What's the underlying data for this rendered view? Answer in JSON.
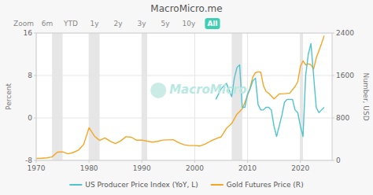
{
  "chart_data": {
    "type": "line",
    "title": "MacroMicro.me",
    "zoom_labels": [
      "Zoom",
      "6m",
      "YTD",
      "1y",
      "2y",
      "3y",
      "5y",
      "10y",
      "All"
    ],
    "active_zoom": "All",
    "watermark": "MacroMicro",
    "ylabel": "Percent",
    "y2label": "Number, USD",
    "xlim": [
      1970,
      2026
    ],
    "xticks": [
      1970,
      1980,
      1990,
      2000,
      2010,
      2020
    ],
    "ylim": [
      -8,
      16
    ],
    "yticks": [
      -8,
      0,
      8,
      16
    ],
    "y2lim": [
      0,
      2400
    ],
    "y2ticks": [
      0,
      800,
      1600,
      2400
    ],
    "grid": true,
    "legend": "bottom",
    "shaded_regions": [
      [
        1973,
        1975
      ],
      [
        1980,
        1982
      ],
      [
        1990,
        1991
      ],
      [
        2007,
        2009
      ],
      [
        2020,
        2020.5
      ]
    ],
    "series": [
      {
        "name": "US Producer Price Index (YoY, L)",
        "color": "#4fc3d0",
        "x": [
          2004,
          2005,
          2006,
          2007,
          2007.5,
          2008,
          2008.5,
          2009,
          2009.5,
          2010,
          2010.5,
          2011,
          2011.5,
          2012,
          2012.5,
          2013,
          2013.5,
          2014,
          2014.5,
          2015,
          2015.5,
          2016,
          2016.5,
          2017,
          2017.5,
          2018,
          2018.5,
          2019,
          2019.5,
          2020,
          2020.5,
          2021,
          2021.5,
          2022,
          2022.5,
          2023,
          2023.5,
          2024,
          2024.5
        ],
        "values": [
          3.5,
          5.5,
          6.5,
          4.0,
          7.5,
          9.5,
          10.0,
          2.0,
          2.0,
          4.5,
          5.5,
          7.0,
          7.5,
          2.5,
          1.5,
          1.5,
          2.0,
          2.0,
          1.5,
          -1.5,
          -3.5,
          -1.5,
          0.5,
          3.0,
          3.5,
          3.5,
          3.5,
          1.5,
          1.0,
          -1.5,
          -3.5,
          8.0,
          12.0,
          14.0,
          8.0,
          2.0,
          1.0,
          1.5,
          2.0
        ]
      },
      {
        "name": "Gold Futures Price (R)",
        "color": "#f5a623",
        "axis": "y2",
        "x": [
          1970,
          1971,
          1972,
          1973,
          1974,
          1975,
          1976,
          1977,
          1978,
          1979,
          1980,
          1981,
          1982,
          1983,
          1984,
          1985,
          1986,
          1987,
          1988,
          1989,
          1990,
          1991,
          1992,
          1993,
          1994,
          1995,
          1996,
          1997,
          1998,
          1999,
          2000,
          2001,
          2002,
          2003,
          2004,
          2005,
          2006,
          2007,
          2008,
          2009,
          2009.5,
          2010,
          2010.5,
          2011,
          2011.5,
          2012,
          2012.5,
          2013,
          2013.5,
          2014,
          2015,
          2016,
          2017,
          2018,
          2019,
          2019.5,
          2020,
          2020.5,
          2021,
          2021.5,
          2022,
          2022.5,
          2023,
          2023.5,
          2024,
          2024.5
        ],
        "values": [
          37,
          40,
          48,
          65,
          155,
          160,
          125,
          148,
          193,
          305,
          615,
          460,
          376,
          424,
          361,
          317,
          368,
          447,
          437,
          381,
          383,
          362,
          345,
          359,
          384,
          387,
          388,
          331,
          294,
          279,
          279,
          271,
          310,
          363,
          410,
          444,
          603,
          695,
          872,
          972,
          1095,
          1227,
          1380,
          1571,
          1652,
          1669,
          1664,
          1411,
          1300,
          1266,
          1160,
          1251,
          1257,
          1269,
          1393,
          1481,
          1770,
          1875,
          1800,
          1820,
          1800,
          1720,
          1928,
          2063,
          2200,
          2350
        ]
      }
    ]
  }
}
